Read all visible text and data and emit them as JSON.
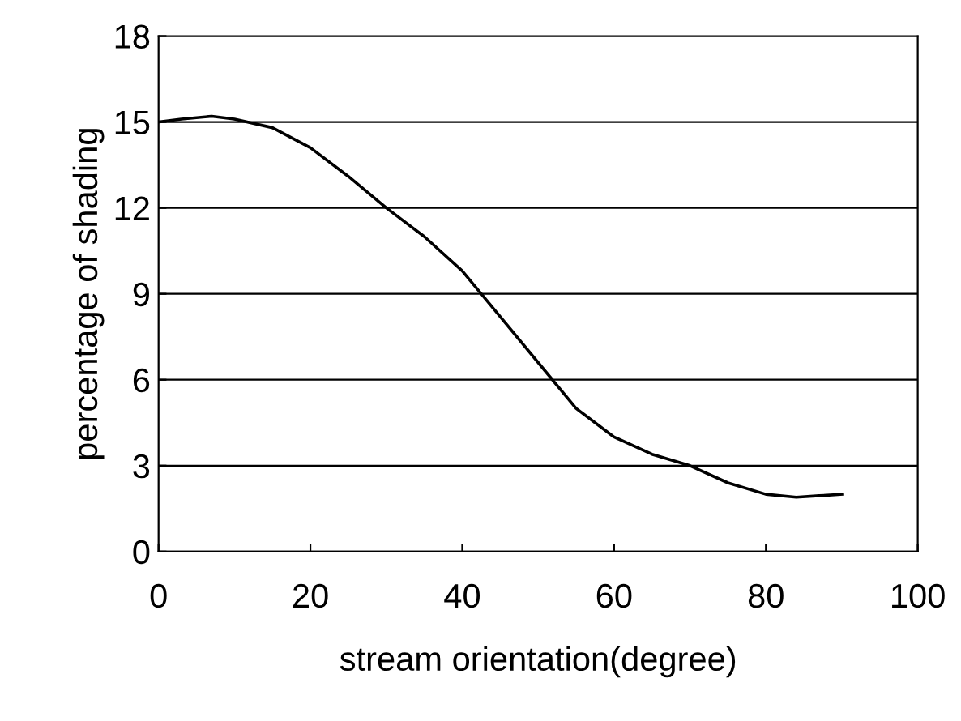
{
  "chart_data": {
    "type": "line",
    "xlabel": "stream orientation(degree)",
    "ylabel": "percentage of shading",
    "x": [
      0,
      3,
      7,
      10,
      15,
      20,
      25,
      30,
      35,
      40,
      45,
      50,
      55,
      60,
      65,
      70,
      75,
      80,
      84,
      87,
      90
    ],
    "series": [
      {
        "color": "#000000",
        "values": [
          15,
          15.1,
          15.2,
          15.1,
          14.8,
          14.1,
          13.1,
          12,
          11,
          9.8,
          8.2,
          6.6,
          5,
          4,
          3.4,
          3,
          2.4,
          2,
          1.9,
          1.95,
          2
        ]
      }
    ],
    "xlim": [
      0,
      100
    ],
    "xticks": [
      0,
      20,
      40,
      60,
      80,
      100
    ],
    "ylim": [
      0,
      18
    ],
    "yticks": [
      0,
      3,
      6,
      9,
      12,
      15,
      18
    ],
    "grid": "y",
    "marker": "none",
    "line_style": "solid",
    "legend": false
  }
}
